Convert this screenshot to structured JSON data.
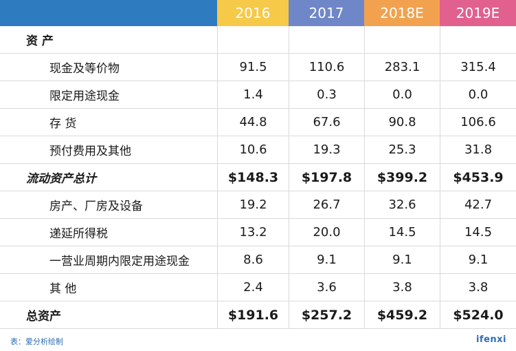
{
  "colors": {
    "header_label_bg": "#2f7bbf",
    "year_bgs": [
      "#f7c949",
      "#6f86c8",
      "#f2a24e",
      "#e2608d"
    ]
  },
  "table": {
    "years": [
      "2016",
      "2017",
      "2018E",
      "2019E"
    ],
    "rows": [
      {
        "label": "资 产",
        "kind": "section",
        "values": [
          "",
          "",
          "",
          ""
        ]
      },
      {
        "label": "现金及等价物",
        "kind": "item",
        "values": [
          "91.5",
          "110.6",
          "283.1",
          "315.4"
        ]
      },
      {
        "label": "限定用途现金",
        "kind": "item",
        "values": [
          "1.4",
          "0.3",
          "0.0",
          "0.0"
        ]
      },
      {
        "label": "存 货",
        "kind": "item",
        "values": [
          "44.8",
          "67.6",
          "90.8",
          "106.6"
        ]
      },
      {
        "label": "预付费用及其他",
        "kind": "item",
        "values": [
          "10.6",
          "19.3",
          "25.3",
          "31.8"
        ]
      },
      {
        "label": "流动资产总计",
        "kind": "subtotal",
        "values": [
          "$148.3",
          "$197.8",
          "$399.2",
          "$453.9"
        ]
      },
      {
        "label": "房产、厂房及设备",
        "kind": "item",
        "values": [
          "19.2",
          "26.7",
          "32.6",
          "42.7"
        ]
      },
      {
        "label": "递延所得税",
        "kind": "item",
        "values": [
          "13.2",
          "20.0",
          "14.5",
          "14.5"
        ]
      },
      {
        "label": "一营业周期内限定用途现金",
        "kind": "item",
        "values": [
          "8.6",
          "9.1",
          "9.1",
          "9.1"
        ]
      },
      {
        "label": "其 他",
        "kind": "item",
        "values": [
          "2.4",
          "3.6",
          "3.8",
          "3.8"
        ]
      },
      {
        "label": "总资产",
        "kind": "total",
        "values": [
          "$191.6",
          "$257.2",
          "$459.2",
          "$524.0"
        ]
      }
    ]
  },
  "footer": {
    "source": "表：爱分析绘制",
    "brand": "ifenxi"
  }
}
